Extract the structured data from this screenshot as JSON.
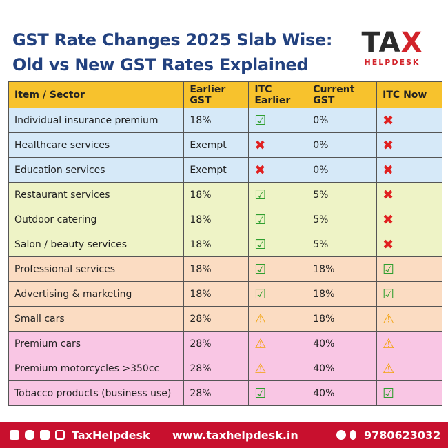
{
  "header": {
    "title_line1": "GST Rate Changes 2025 Slab Wise:",
    "title_line2": "Old vs New GST Rates Explained"
  },
  "logo": {
    "main": "TA",
    "accent": "X",
    "tagline": "HELPDESK"
  },
  "icon_colors": {
    "☑": "#2f9e2f",
    "✖": "#e02020",
    "⚠": "#f2a20c"
  },
  "table": {
    "header": [
      "Item / Sector",
      "Earlier GST",
      "ITC Earlier",
      "Current GST",
      "ITC Now"
    ],
    "header_bg": "#f7c22d",
    "rows": [
      {
        "bg": "#d6e9f8",
        "cells": [
          "Individual insurance premium",
          "18%",
          "☑",
          "0%",
          "✖"
        ]
      },
      {
        "bg": "#d6e9f8",
        "cells": [
          "Healthcare services",
          "Exempt",
          "✖",
          "0%",
          "✖"
        ]
      },
      {
        "bg": "#d6e9f8",
        "cells": [
          "Education services",
          "Exempt",
          "✖",
          "0%",
          "✖"
        ]
      },
      {
        "bg": "#eef3c6",
        "cells": [
          "Restaurant services",
          "18%",
          "☑",
          "5%",
          "✖"
        ]
      },
      {
        "bg": "#eef3c6",
        "cells": [
          "Outdoor catering",
          "18%",
          "☑",
          "5%",
          "✖"
        ]
      },
      {
        "bg": "#eef3c6",
        "cells": [
          "Salon / beauty services",
          "18%",
          "☑",
          "5%",
          "✖"
        ]
      },
      {
        "bg": "#fbdcc2",
        "cells": [
          "Professional services",
          "18%",
          "☑",
          "18%",
          "☑"
        ]
      },
      {
        "bg": "#fbdcc2",
        "cells": [
          "Advertising & marketing",
          "18%",
          "☑",
          "18%",
          "☑"
        ]
      },
      {
        "bg": "#fbdcc2",
        "cells": [
          "Small cars",
          "28%",
          "⚠",
          "18%",
          "⚠"
        ]
      },
      {
        "bg": "#f9c6e4",
        "cells": [
          "Premium cars",
          "28%",
          "⚠",
          "40%",
          "⚠"
        ]
      },
      {
        "bg": "#f9c6e4",
        "cells": [
          "Premium motorcycles >350cc",
          "28%",
          "⚠",
          "40%",
          "⚠"
        ]
      },
      {
        "bg": "#f9c6e4",
        "cells": [
          "Tobacco products (business use)",
          "28%",
          "☑",
          "40%",
          "☑"
        ]
      }
    ]
  },
  "footer": {
    "brand": "TaxHelpdesk",
    "website": "www.taxhelpdesk.in",
    "phone": "9780623032"
  }
}
